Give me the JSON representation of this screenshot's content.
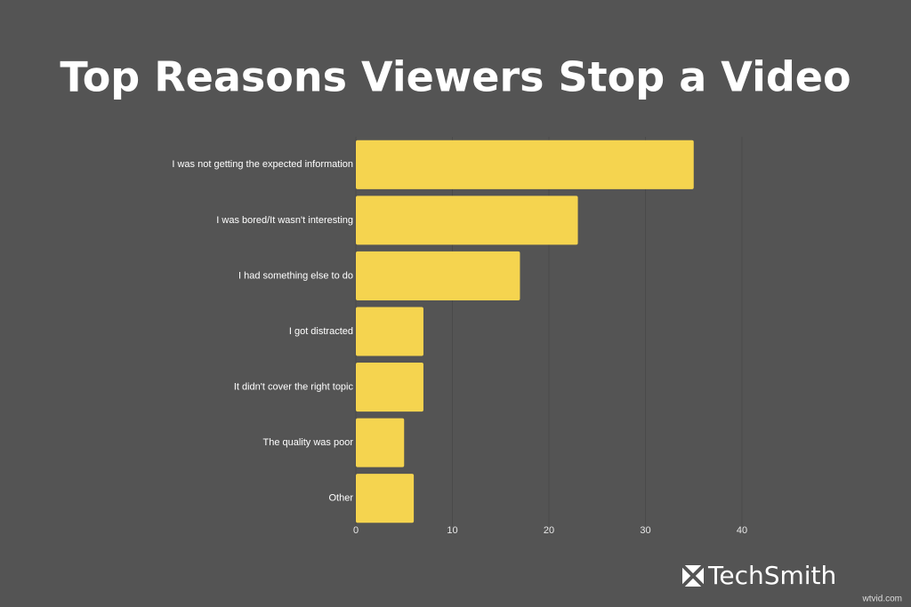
{
  "chart_data": {
    "type": "bar",
    "orientation": "horizontal",
    "title": "Top Reasons Viewers Stop a Video",
    "categories": [
      "I was not getting the expected information",
      "I was bored/It wasn't interesting",
      "I had something else to do",
      "I got distracted",
      "It didn't cover the right topic",
      "The quality was poor",
      "Other"
    ],
    "values": [
      35,
      23,
      17,
      7,
      7,
      5,
      6
    ],
    "color": "#f5d44f",
    "xlim": [
      0,
      40
    ],
    "xticks": [
      0,
      10,
      20,
      30,
      40
    ],
    "grid": true
  },
  "logo": "TechSmith",
  "watermark": "wtvid.com"
}
